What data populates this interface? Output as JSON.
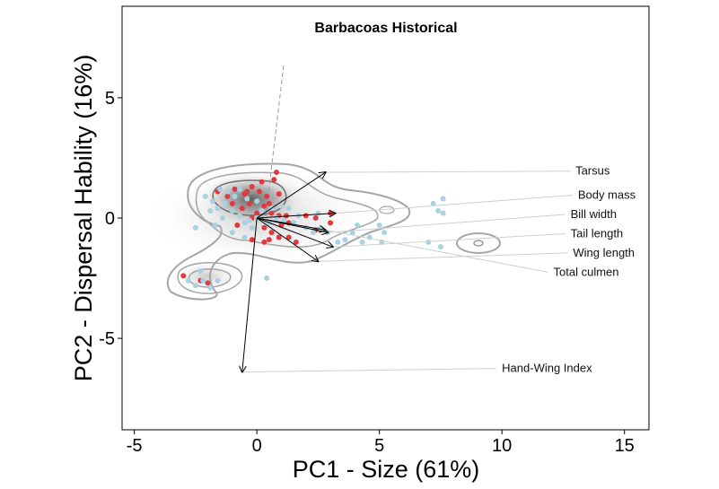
{
  "chart_data": {
    "type": "scatter",
    "title": "Barbacoas Historical",
    "xlabel": "PC1 - Size (61%)",
    "ylabel": "PC2 - Dispersal Hability (16%)",
    "xlim": [
      -5.5,
      16
    ],
    "ylim": [
      -8.8,
      8.8
    ],
    "xticks": [
      -5,
      0,
      5,
      10,
      15
    ],
    "yticks": [
      -5,
      0,
      5
    ],
    "grid": false,
    "colors": {
      "red": "#e0393e",
      "blue": "#a9d1e1",
      "arrow": "#000000",
      "contour": "#a6a6a6"
    },
    "series": [
      {
        "color": "#e0393e",
        "points": [
          [
            -1.6,
            1.1
          ],
          [
            -1.2,
            0.9
          ],
          [
            -0.9,
            1.2
          ],
          [
            -0.5,
            1.0
          ],
          [
            -0.2,
            1.3
          ],
          [
            0.1,
            1.1
          ],
          [
            0.4,
            0.9
          ],
          [
            0.9,
            1.0
          ],
          [
            0.7,
            1.6
          ],
          [
            0.2,
            1.5
          ],
          [
            -0.3,
            0.6
          ],
          [
            0.3,
            0.5
          ],
          [
            0.6,
            0.2
          ],
          [
            0.9,
            0.1
          ],
          [
            1.2,
            0.1
          ],
          [
            2.0,
            0.1
          ],
          [
            2.4,
            0.0
          ],
          [
            3.0,
            0.2
          ],
          [
            3.0,
            -0.2
          ],
          [
            0.3,
            -0.4
          ],
          [
            0.6,
            -0.6
          ],
          [
            0.9,
            -0.8
          ],
          [
            0.5,
            -0.9
          ],
          [
            1.3,
            -0.8
          ],
          [
            -0.2,
            -0.9
          ],
          [
            0.3,
            -1.0
          ],
          [
            1.3,
            -0.2
          ],
          [
            -3.0,
            -2.4
          ],
          [
            -2.3,
            -2.6
          ],
          [
            -2.0,
            -2.7
          ],
          [
            -0.6,
            0.4
          ],
          [
            -1.0,
            0.6
          ],
          [
            1.6,
            -1.0
          ],
          [
            2.4,
            -0.5
          ],
          [
            -0.8,
            -0.3
          ],
          [
            1.0,
            -0.3
          ],
          [
            -0.4,
            1.1
          ],
          [
            0.0,
            0.2
          ],
          [
            0.5,
            0.6
          ],
          [
            0.8,
            1.9
          ],
          [
            -0.2,
            0.0
          ]
        ]
      },
      {
        "color": "#a9d1e1",
        "points": [
          [
            -2.1,
            0.9
          ],
          [
            -1.8,
            0.7
          ],
          [
            -1.6,
            0.4
          ],
          [
            -1.3,
            0.6
          ],
          [
            -1.0,
            0.3
          ],
          [
            -0.7,
            0.1
          ],
          [
            -0.5,
            -0.2
          ],
          [
            -0.2,
            -0.4
          ],
          [
            0.0,
            0.0
          ],
          [
            0.2,
            0.3
          ],
          [
            0.5,
            -0.2
          ],
          [
            0.8,
            0.0
          ],
          [
            1.1,
            -0.1
          ],
          [
            1.5,
            -0.2
          ],
          [
            1.7,
            0.1
          ],
          [
            2.0,
            -0.4
          ],
          [
            2.3,
            -0.6
          ],
          [
            2.6,
            -0.4
          ],
          [
            2.9,
            -0.6
          ],
          [
            3.3,
            -1.0
          ],
          [
            3.6,
            -0.9
          ],
          [
            3.9,
            -0.6
          ],
          [
            4.1,
            -0.3
          ],
          [
            4.3,
            -1.0
          ],
          [
            4.6,
            -0.8
          ],
          [
            5.0,
            -0.3
          ],
          [
            5.2,
            -0.6
          ],
          [
            5.1,
            -1.0
          ],
          [
            7.2,
            0.6
          ],
          [
            7.4,
            0.3
          ],
          [
            7.6,
            0.2
          ],
          [
            7.6,
            0.8
          ],
          [
            7.0,
            -1.0
          ],
          [
            7.5,
            -1.2
          ],
          [
            -1.5,
            1.2
          ],
          [
            -1.2,
            1.1
          ],
          [
            -0.9,
            0.9
          ],
          [
            -0.7,
            1.2
          ],
          [
            -0.4,
            0.8
          ],
          [
            -1.0,
            -0.6
          ],
          [
            -0.5,
            -0.8
          ],
          [
            -2.5,
            -0.4
          ],
          [
            -1.7,
            -0.3
          ],
          [
            -2.8,
            -2.6
          ],
          [
            -2.5,
            -2.8
          ],
          [
            -2.2,
            -2.6
          ],
          [
            -1.9,
            -2.9
          ],
          [
            -1.6,
            -2.6
          ],
          [
            -2.3,
            -2.2
          ],
          [
            0.4,
            -2.5
          ],
          [
            -1.4,
            0.0
          ],
          [
            0.0,
            0.7
          ],
          [
            -0.3,
            -0.1
          ],
          [
            0.6,
            0.4
          ],
          [
            1.0,
            0.5
          ],
          [
            -1.9,
            0.3
          ],
          [
            2.5,
            0.2
          ],
          [
            1.3,
            0.4
          ]
        ]
      }
    ],
    "loadings": [
      {
        "name": "Tarsus",
        "x": 2.8,
        "y": 1.9,
        "label_x": 13.0,
        "label_y": 1.8
      },
      {
        "name": "Body mass",
        "x": 3.2,
        "y": 0.2,
        "label_x": 13.1,
        "label_y": 0.8
      },
      {
        "name": "Bill width",
        "x": 2.9,
        "y": -0.6,
        "label_x": 12.8,
        "label_y": 0.0
      },
      {
        "name": "Tail length",
        "x": 3.1,
        "y": -1.2,
        "label_x": 12.8,
        "label_y": -0.8
      },
      {
        "name": "Wing length",
        "x": 2.5,
        "y": -1.8,
        "label_x": 12.9,
        "label_y": -1.6
      },
      {
        "name": "Total culmen",
        "x": 2.8,
        "y": -0.5,
        "label_x": 12.1,
        "label_y": -2.4
      },
      {
        "name": "Hand-Wing Index",
        "x": -0.6,
        "y": -6.4,
        "label_x": 10.0,
        "label_y": -6.4
      }
    ]
  }
}
